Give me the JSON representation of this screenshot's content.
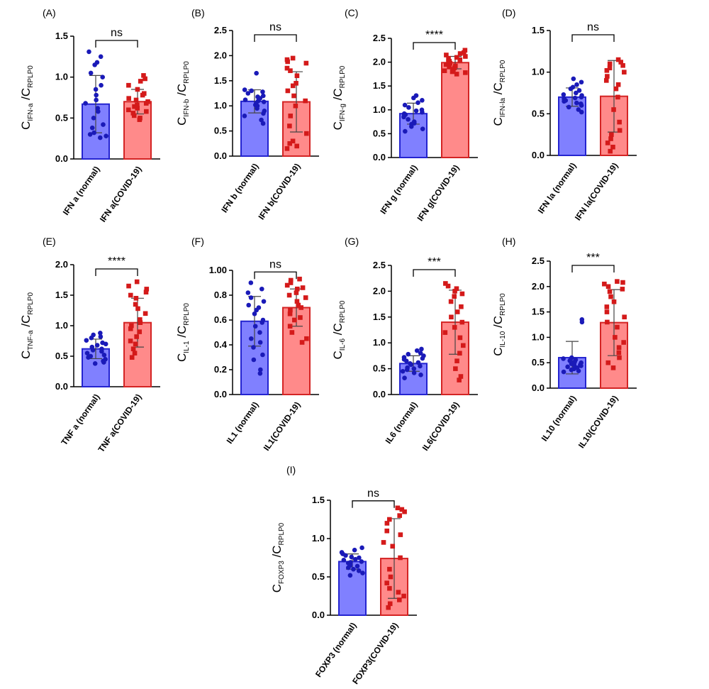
{
  "chart_data": [
    {
      "type": "bar",
      "panel": "(A)",
      "categories": [
        "IFN a (normal)",
        "IFN a(COVID-19)"
      ],
      "ylabel": {
        "main": "C",
        "sub": "IFN-a",
        "sep": " /C",
        "sub2": "RPLP0"
      },
      "ylim": [
        0,
        1.5
      ],
      "yticks": [
        "0.0",
        "0.5",
        "1.0",
        "1.5"
      ],
      "significance": "ns",
      "series": [
        {
          "category": "IFN a (normal)",
          "mean": 0.67,
          "sd": 0.35,
          "points": [
            1.31,
            1.25,
            1.18,
            1.15,
            1.05,
            1.0,
            0.9,
            0.85,
            0.78,
            0.72,
            0.68,
            0.62,
            0.58,
            0.5,
            0.42,
            0.38,
            0.32,
            0.3,
            0.28,
            0.26
          ]
        },
        {
          "category": "IFN a(COVID-19)",
          "mean": 0.7,
          "sd": 0.15,
          "points": [
            1.02,
            0.98,
            0.95,
            0.9,
            0.85,
            0.8,
            0.78,
            0.74,
            0.72,
            0.7,
            0.68,
            0.66,
            0.64,
            0.62,
            0.6,
            0.58,
            0.56,
            0.53,
            0.5,
            0.48
          ]
        }
      ]
    },
    {
      "type": "bar",
      "panel": "(B)",
      "categories": [
        "IFN b (normal)",
        "IFN b(COVID-19)"
      ],
      "ylabel": {
        "main": "C",
        "sub": "IFN-b",
        "sep": " /C",
        "sub2": "RPLP0"
      },
      "ylim": [
        0,
        2.5
      ],
      "yticks": [
        "0.0",
        "0.5",
        "1.0",
        "1.5",
        "2.0",
        "2.5"
      ],
      "significance": "ns",
      "series": [
        {
          "category": "IFN b (normal)",
          "mean": 1.09,
          "sd": 0.23,
          "points": [
            1.65,
            1.32,
            1.3,
            1.28,
            1.25,
            1.2,
            1.18,
            1.15,
            1.12,
            1.1,
            1.08,
            1.05,
            1.02,
            1.0,
            0.95,
            0.9,
            0.85,
            0.8,
            0.72,
            0.65
          ]
        },
        {
          "category": "IFN b(COVID-19)",
          "mean": 1.08,
          "sd": 0.6,
          "points": [
            1.95,
            1.92,
            1.88,
            1.85,
            1.75,
            1.7,
            1.6,
            1.45,
            1.4,
            1.3,
            1.2,
            1.1,
            1.0,
            0.8,
            0.6,
            0.45,
            0.3,
            0.25,
            0.2,
            0.15
          ]
        }
      ]
    },
    {
      "type": "bar",
      "panel": "(C)",
      "categories": [
        "IFN g (normal)",
        "IFN g(COVID-19)"
      ],
      "ylabel": {
        "main": "C",
        "sub": "IFN-g",
        "sep": " /C",
        "sub2": "RPLP0"
      },
      "ylim": [
        0,
        2.5
      ],
      "yticks": [
        "0.0",
        "0.5",
        "1.0",
        "1.5",
        "2.0",
        "2.5"
      ],
      "significance": "****",
      "series": [
        {
          "category": "IFN g (normal)",
          "mean": 0.92,
          "sd": 0.22,
          "points": [
            1.3,
            1.25,
            1.2,
            1.15,
            1.1,
            1.05,
            1.0,
            0.98,
            0.95,
            0.92,
            0.9,
            0.88,
            0.85,
            0.8,
            0.75,
            0.72,
            0.7,
            0.65,
            0.6,
            0.55
          ]
        },
        {
          "category": "IFN g(COVID-19)",
          "mean": 1.99,
          "sd": 0.13,
          "points": [
            2.25,
            2.2,
            2.18,
            2.15,
            2.12,
            2.1,
            2.08,
            2.05,
            2.02,
            2.0,
            1.98,
            1.95,
            1.92,
            1.9,
            1.88,
            1.85,
            1.82,
            1.8,
            1.78,
            1.75
          ]
        }
      ]
    },
    {
      "type": "bar",
      "panel": "(D)",
      "categories": [
        "IFN la (normal)",
        "IFN la(COVID-19)"
      ],
      "ylabel": {
        "main": "C",
        "sub": "IFN-la",
        "sep": " /C",
        "sub2": "RPLP0"
      },
      "ylim": [
        0,
        1.5
      ],
      "yticks": [
        "0.0",
        "0.5",
        "1.0",
        "1.5"
      ],
      "significance": "ns",
      "series": [
        {
          "category": "IFN la (normal)",
          "mean": 0.7,
          "sd": 0.11,
          "points": [
            0.92,
            0.88,
            0.85,
            0.82,
            0.8,
            0.78,
            0.75,
            0.73,
            0.72,
            0.7,
            0.69,
            0.68,
            0.66,
            0.65,
            0.63,
            0.62,
            0.6,
            0.58,
            0.55,
            0.52
          ]
        },
        {
          "category": "IFN la(COVID-19)",
          "mean": 0.71,
          "sd": 0.43,
          "points": [
            1.15,
            1.12,
            1.1,
            1.08,
            1.05,
            1.02,
            1.0,
            0.95,
            0.9,
            0.85,
            0.8,
            0.7,
            0.55,
            0.4,
            0.3,
            0.25,
            0.2,
            0.15,
            0.1,
            0.05
          ]
        }
      ]
    },
    {
      "type": "bar",
      "panel": "(E)",
      "categories": [
        "TNF a (normal)",
        "TNF a(COVID-19)"
      ],
      "ylabel": {
        "main": "C",
        "sub": "TNF-a",
        "sep": " /C",
        "sub2": "RPLP0"
      },
      "ylim": [
        0,
        2.0
      ],
      "yticks": [
        "0.0",
        "0.5",
        "1.0",
        "1.5",
        "2.0"
      ],
      "significance": "****",
      "series": [
        {
          "category": "TNF a (normal)",
          "mean": 0.62,
          "sd": 0.16,
          "points": [
            0.88,
            0.85,
            0.82,
            0.8,
            0.76,
            0.72,
            0.7,
            0.68,
            0.65,
            0.62,
            0.6,
            0.58,
            0.55,
            0.52,
            0.5,
            0.48,
            0.45,
            0.42,
            0.4,
            0.38
          ]
        },
        {
          "category": "TNF a(COVID-19)",
          "mean": 1.05,
          "sd": 0.4,
          "points": [
            1.72,
            1.65,
            1.6,
            1.55,
            1.5,
            1.45,
            1.35,
            1.28,
            1.2,
            1.1,
            1.05,
            1.0,
            0.95,
            0.9,
            0.82,
            0.75,
            0.7,
            0.62,
            0.55,
            0.48
          ]
        }
      ]
    },
    {
      "type": "bar",
      "panel": "(F)",
      "categories": [
        "IL1 (normal)",
        "IL1(COVID-19)"
      ],
      "ylabel": {
        "main": "C",
        "sub": "IL-1",
        "sep": " /C",
        "sub2": "RPLP0"
      },
      "ylim": [
        0,
        1.0
      ],
      "yticks": [
        "0.0",
        "0.2",
        "0.4",
        "0.6",
        "0.8",
        "1.00"
      ],
      "significance": "ns",
      "series": [
        {
          "category": "IL1 (normal)",
          "mean": 0.59,
          "sd": 0.2,
          "points": [
            0.9,
            0.85,
            0.82,
            0.78,
            0.75,
            0.72,
            0.7,
            0.68,
            0.65,
            0.6,
            0.58,
            0.55,
            0.5,
            0.45,
            0.42,
            0.38,
            0.32,
            0.28,
            0.2,
            0.17
          ]
        },
        {
          "category": "IL1(COVID-19)",
          "mean": 0.7,
          "sd": 0.15,
          "points": [
            0.93,
            0.92,
            0.9,
            0.88,
            0.86,
            0.85,
            0.82,
            0.8,
            0.78,
            0.75,
            0.72,
            0.7,
            0.68,
            0.65,
            0.62,
            0.6,
            0.55,
            0.5,
            0.45,
            0.42
          ]
        }
      ]
    },
    {
      "type": "bar",
      "panel": "(G)",
      "categories": [
        "IL6 (normal)",
        "IL6(COVID-19)"
      ],
      "ylabel": {
        "main": "C",
        "sub": "IL-6",
        "sep": " /C",
        "sub2": "RPLP0"
      },
      "ylim": [
        0,
        2.5
      ],
      "yticks": [
        "0.0",
        "0.5",
        "1.0",
        "1.5",
        "2.0",
        "2.5"
      ],
      "significance": "***",
      "series": [
        {
          "category": "IL6 (normal)",
          "mean": 0.6,
          "sd": 0.15,
          "points": [
            0.88,
            0.85,
            0.8,
            0.78,
            0.75,
            0.72,
            0.7,
            0.68,
            0.65,
            0.62,
            0.6,
            0.58,
            0.55,
            0.52,
            0.5,
            0.48,
            0.45,
            0.42,
            0.38,
            0.32
          ]
        },
        {
          "category": "IL6(COVID-19)",
          "mean": 1.4,
          "sd": 0.62,
          "points": [
            2.15,
            2.1,
            2.05,
            2.0,
            1.95,
            1.9,
            1.8,
            1.7,
            1.6,
            1.5,
            1.4,
            1.3,
            1.2,
            1.1,
            0.95,
            0.8,
            0.65,
            0.5,
            0.35,
            0.28
          ]
        }
      ]
    },
    {
      "type": "bar",
      "panel": "(H)",
      "categories": [
        "IL10 (normal)",
        "IL10(COVID-19)"
      ],
      "ylabel": {
        "main": "C",
        "sub": "IL-10",
        "sep": " /C",
        "sub2": "RPLP0"
      },
      "ylim": [
        0,
        2.5
      ],
      "yticks": [
        "0.0",
        "0.5",
        "1.0",
        "1.5",
        "2.0",
        "2.5"
      ],
      "significance": "***",
      "series": [
        {
          "category": "IL10 (normal)",
          "mean": 0.6,
          "sd": 0.32,
          "points": [
            1.35,
            1.3,
            0.6,
            0.58,
            0.56,
            0.55,
            0.54,
            0.52,
            0.5,
            0.5,
            0.48,
            0.46,
            0.45,
            0.44,
            0.42,
            0.4,
            0.38,
            0.36,
            0.34,
            0.32
          ]
        },
        {
          "category": "IL10(COVID-19)",
          "mean": 1.29,
          "sd": 0.65,
          "points": [
            2.1,
            2.08,
            2.05,
            2.0,
            1.95,
            1.9,
            1.8,
            1.7,
            1.6,
            1.5,
            1.4,
            1.3,
            1.2,
            1.0,
            0.9,
            0.8,
            0.7,
            0.6,
            0.5,
            0.4
          ]
        }
      ]
    },
    {
      "type": "bar",
      "panel": "(I)",
      "categories": [
        "FOXP3 (normal)",
        "FOXP3(COVID-19)"
      ],
      "ylabel": {
        "main": "C",
        "sub": "FOXP3",
        "sep": " /C",
        "sub2": "RPLP0"
      },
      "ylim": [
        0,
        1.5
      ],
      "yticks": [
        "0.0",
        "0.5",
        "1.0",
        "1.5"
      ],
      "significance": "ns",
      "series": [
        {
          "category": "FOXP3 (normal)",
          "mean": 0.7,
          "sd": 0.1,
          "points": [
            0.88,
            0.85,
            0.82,
            0.8,
            0.78,
            0.76,
            0.75,
            0.73,
            0.72,
            0.7,
            0.69,
            0.68,
            0.66,
            0.65,
            0.64,
            0.62,
            0.6,
            0.58,
            0.55,
            0.52
          ]
        },
        {
          "category": "FOXP3(COVID-19)",
          "mean": 0.74,
          "sd": 0.52,
          "points": [
            1.4,
            1.38,
            1.35,
            1.3,
            1.25,
            1.2,
            1.1,
            1.05,
            0.95,
            0.9,
            0.75,
            0.6,
            0.5,
            0.42,
            0.35,
            0.3,
            0.25,
            0.2,
            0.15,
            0.1
          ]
        }
      ]
    }
  ],
  "colors": {
    "normal_fill": "#8080ff",
    "normal_edge": "#2424d0",
    "normal_point": "#1a1ab8",
    "covid_fill": "#ff8a8a",
    "covid_edge": "#d42424",
    "covid_point": "#d41a1a",
    "axis": "#000000"
  }
}
